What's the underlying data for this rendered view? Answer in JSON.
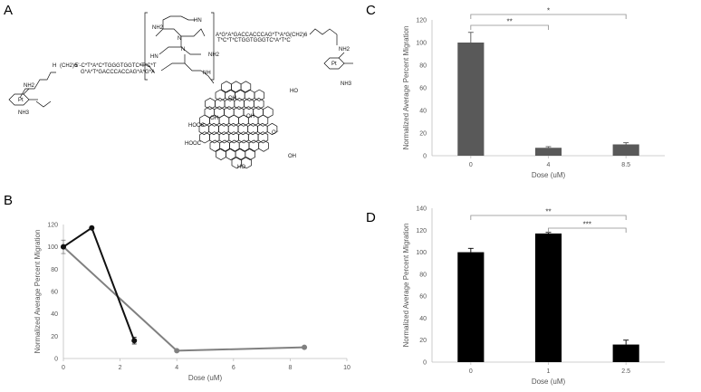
{
  "panels": {
    "a": "A",
    "b": "B",
    "c": "C",
    "d": "D"
  },
  "figure_a": {
    "strand_left_top": "5'-C*T*A*C*TGGGTGGTC*T*C*T",
    "strand_left_bottom": "G*A*T*GACCCACCAG*A*G*A",
    "strand_right_top": "A*G*A*GACCACCCAG*T*A*G",
    "strand_right_bottom": "T*C*T*CTGGTGGGTC*A*T*C",
    "linker_left": "(CH2)6",
    "linker_right": "(CH2)6",
    "amine": "NH3",
    "nh2": "NH2",
    "hn": "HN",
    "pt": "Pt",
    "oh": "OH",
    "o_minus": "O⁻",
    "hooc": "HOOC",
    "cooh": "COOH",
    "cooh_alt": "HO",
    "nh": "NH",
    "n": "N",
    "h": "H"
  },
  "chart_data": [
    {
      "panel": "B",
      "type": "line",
      "xlabel": "Dose (uM)",
      "ylabel": "Normalized Average Percent Migration",
      "xlim": [
        0,
        10
      ],
      "ylim": [
        0,
        120
      ],
      "xticks": [
        "0",
        "2",
        "4",
        "6",
        "8",
        "10"
      ],
      "yticks": [
        "0",
        "20",
        "40",
        "60",
        "80",
        "100",
        "120"
      ],
      "series": [
        {
          "color": "#111111",
          "x": [
            0,
            1,
            2.5
          ],
          "y": [
            100,
            117,
            16
          ],
          "err": [
            0,
            0,
            3
          ]
        },
        {
          "color": "#808080",
          "x": [
            0,
            4,
            8.5
          ],
          "y": [
            100,
            7,
            10
          ],
          "err": [
            6,
            0,
            0
          ]
        }
      ],
      "grid": false
    },
    {
      "panel": "C",
      "type": "bar",
      "xlabel": "Dose (uM)",
      "ylabel": "Normalized Average Percent Migration",
      "categories": [
        "0",
        "4",
        "8.5"
      ],
      "values": [
        100,
        7,
        10
      ],
      "errors": [
        9,
        1,
        1.5
      ],
      "ylim": [
        0,
        120
      ],
      "yticks": [
        "0",
        "20",
        "40",
        "60",
        "80",
        "100",
        "120"
      ],
      "bar_color": "#595959",
      "significance": [
        {
          "from": 0,
          "to": 1,
          "label": "**"
        },
        {
          "from": 0,
          "to": 2,
          "label": "*"
        }
      ],
      "grid": false
    },
    {
      "panel": "D",
      "type": "bar",
      "xlabel": "Dose (uM)",
      "ylabel": "Normalized Average Percent Migration",
      "categories": [
        "0",
        "1",
        "2.5"
      ],
      "values": [
        100,
        117,
        16
      ],
      "errors": [
        3.5,
        1,
        4
      ],
      "ylim": [
        0,
        140
      ],
      "yticks": [
        "0",
        "20",
        "40",
        "60",
        "80",
        "100",
        "120",
        "140"
      ],
      "bar_color": "#000000",
      "significance": [
        {
          "from": 0,
          "to": 2,
          "label": "**"
        },
        {
          "from": 1,
          "to": 2,
          "label": "***"
        }
      ],
      "grid": false
    }
  ]
}
